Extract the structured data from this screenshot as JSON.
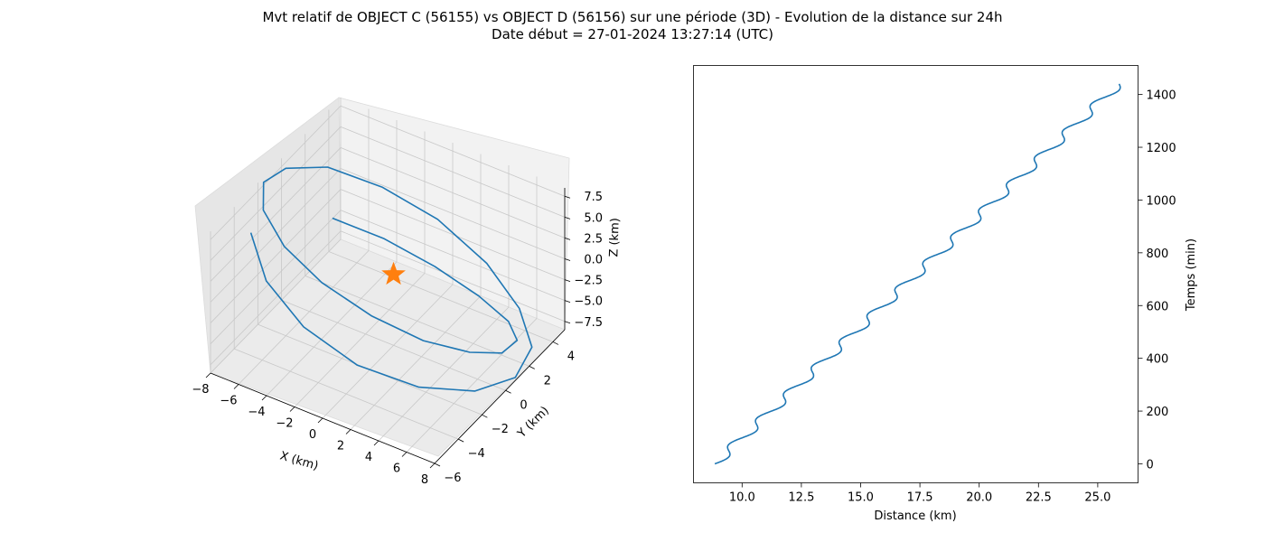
{
  "figure": {
    "title_line1": "Mvt relatif de OBJECT C (56155) vs OBJECT D (56156) sur une période (3D) - Evolution de la distance sur 24h",
    "title_line2": "Date début = 27-01-2024 13:27:14 (UTC)"
  },
  "chart_data": [
    {
      "type": "line3d",
      "xlabel": "X (km)",
      "ylabel": "Y (km)",
      "zlabel": "Z (km)",
      "xticks": [
        "−8",
        "−6",
        "−4",
        "−2",
        "0",
        "2",
        "4",
        "6",
        "8"
      ],
      "yticks": [
        "−6",
        "−4",
        "−2",
        "0",
        "2",
        "4"
      ],
      "zticks": [
        "7.5",
        "5.0",
        "2.5",
        "0.0",
        "−2.5",
        "−5.0",
        "−7.5"
      ],
      "xlim": [
        -8,
        8
      ],
      "ylim": [
        -6,
        5
      ],
      "zlim": [
        -8.5,
        8.5
      ],
      "grid": true,
      "series": [
        {
          "kind": "trajectory",
          "color": "#1f77b4",
          "x": [
            -7.4,
            -5.2,
            -2.2,
            1.3,
            4.6,
            7.0,
            8.1,
            7.6,
            5.6,
            2.6,
            -0.9,
            -4.2,
            -6.9,
            -8.2,
            -8.1,
            -6.6,
            -4.0,
            -0.9,
            2.3,
            5.0,
            6.8,
            7.4,
            6.8,
            5.0,
            2.2,
            -1.1,
            -4.3,
            -6.9
          ],
          "y": [
            -3.3,
            -4.6,
            -5.0,
            -4.6,
            -3.3,
            -1.4,
            0.7,
            2.7,
            4.0,
            4.8,
            4.8,
            4.0,
            2.6,
            0.6,
            -1.4,
            -3.2,
            -4.5,
            -5.0,
            -4.6,
            -3.4,
            -1.6,
            0.4,
            2.4,
            3.8,
            4.6,
            4.8,
            4.3,
            3.0
          ],
          "z": [
            4.8,
            2.4,
            -0.5,
            -3.3,
            -5.6,
            -7.2,
            -7.9,
            -7.5,
            -6.1,
            -3.9,
            -1.0,
            1.8,
            4.4,
            6.3,
            7.6,
            7.9,
            7.2,
            5.7,
            3.3,
            0.4,
            -2.4,
            -5.0,
            -6.8,
            -7.8,
            -7.8,
            -6.8,
            -4.9,
            -2.3
          ]
        },
        {
          "kind": "marker",
          "marker": "star",
          "color": "#ff7f0e",
          "x": [
            0
          ],
          "y": [
            0
          ],
          "z": [
            0
          ]
        }
      ]
    },
    {
      "type": "line",
      "xlabel": "Distance (km)",
      "ylabel": "Temps (min)",
      "xticks": [
        "10.0",
        "12.5",
        "15.0",
        "17.5",
        "20.0",
        "22.5",
        "25.0"
      ],
      "yticks": [
        "0",
        "200",
        "400",
        "600",
        "800",
        "1000",
        "1200",
        "1400"
      ],
      "xlim": [
        7.95,
        26.7
      ],
      "ylim": [
        -72,
        1510
      ],
      "y_axis_side": "right",
      "grid": false,
      "series": [
        {
          "color": "#1f77b4",
          "x_start": 8.85,
          "x_end": 25.9,
          "y_start": 0,
          "y_end": 1440,
          "oscillations": 14.5,
          "wiggle_amplitude_km": 0.28
        }
      ]
    }
  ]
}
